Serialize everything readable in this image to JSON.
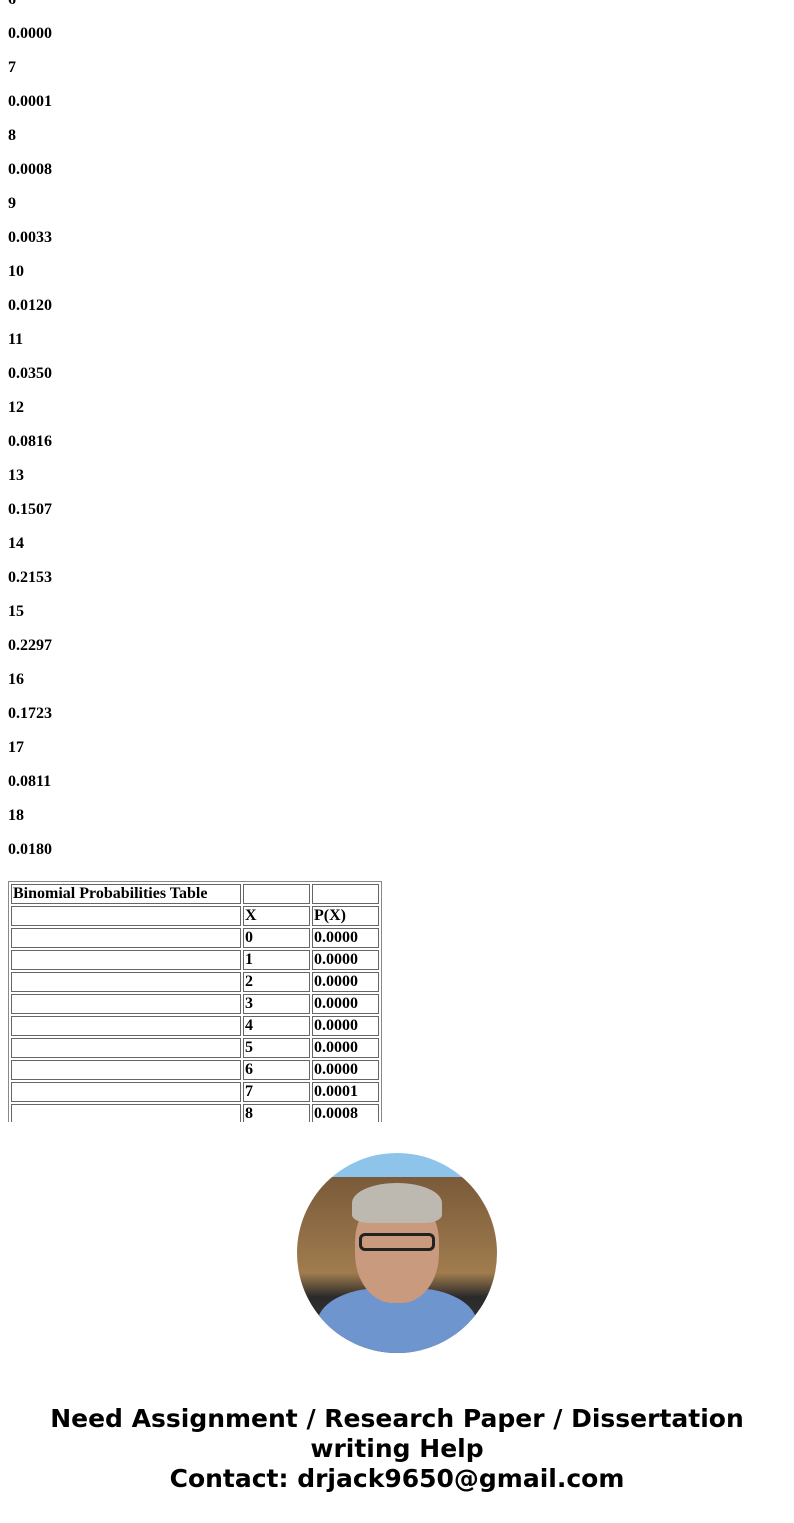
{
  "list": [
    "6",
    "0.0000",
    "7",
    "0.0001",
    "8",
    "0.0008",
    "9",
    "0.0033",
    "10",
    "0.0120",
    "11",
    "0.0350",
    "12",
    "0.0816",
    "13",
    "0.1507",
    "14",
    "0.2153",
    "15",
    "0.2297",
    "16",
    "0.1723",
    "17",
    "0.0811",
    "18",
    "0.0180"
  ],
  "table": {
    "title": "Binomial Probabilities Table",
    "headers": [
      "X",
      "P(X)"
    ],
    "rows": [
      [
        "0",
        "0.0000"
      ],
      [
        "1",
        "0.0000"
      ],
      [
        "2",
        "0.0000"
      ],
      [
        "3",
        "0.0000"
      ],
      [
        "4",
        "0.0000"
      ],
      [
        "5",
        "0.0000"
      ],
      [
        "6",
        "0.0000"
      ],
      [
        "7",
        "0.0001"
      ],
      [
        "8",
        "0.0008"
      ]
    ]
  },
  "promo": {
    "line1": "Need Assignment / Research Paper / Dissertation",
    "line2": "writing Help",
    "line3": "Contact: drjack9650@gmail.com"
  }
}
